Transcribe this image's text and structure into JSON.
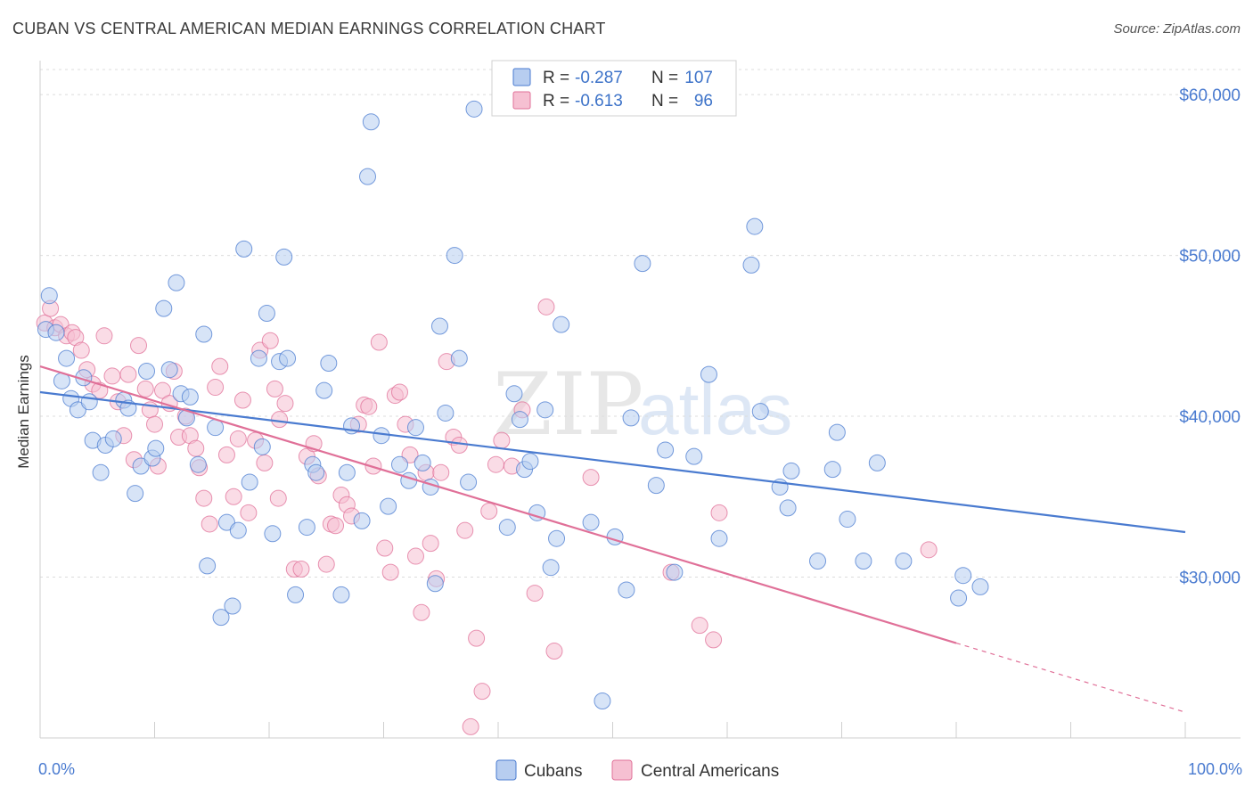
{
  "title": "CUBAN VS CENTRAL AMERICAN MEDIAN EARNINGS CORRELATION CHART",
  "source": "Source: ZipAtlas.com",
  "watermark": {
    "zip": "ZIP",
    "atlas": "atlas"
  },
  "colors": {
    "cubans": "#4a7bd0",
    "central": "#e07098",
    "cubans_fill": "#b7cdf0",
    "central_fill": "#f6c0d2",
    "axis_text": "#4a7bd0"
  },
  "legend": {
    "r_label": "R =",
    "n_label": "N =",
    "rows": [
      {
        "series": "Cubans",
        "r": "-0.287",
        "n": "107"
      },
      {
        "series": "Central Americans",
        "r": "-0.613",
        "n": "96"
      }
    ]
  },
  "bottom_legend": [
    "Cubans",
    "Central Americans"
  ],
  "chart_data": {
    "type": "scatter",
    "title": "CUBAN VS CENTRAL AMERICAN MEDIAN EARNINGS CORRELATION CHART",
    "xlabel": "",
    "ylabel": "Median Earnings",
    "xlim": [
      0,
      100
    ],
    "ylim": [
      20000,
      62000
    ],
    "x_tick_labels": [
      "0.0%",
      "100.0%"
    ],
    "y_ticks": [
      30000,
      40000,
      50000,
      60000
    ],
    "y_tick_labels": [
      "$30,000",
      "$40,000",
      "$50,000",
      "$60,000"
    ],
    "grid": true,
    "legend_position": "top-center",
    "series": [
      {
        "name": "Cubans",
        "trend": {
          "x": [
            0,
            100
          ],
          "y": [
            41500,
            32800
          ]
        },
        "points": [
          [
            0.5,
            45400
          ],
          [
            0.8,
            47500
          ],
          [
            1.4,
            45200
          ],
          [
            1.9,
            42200
          ],
          [
            2.3,
            43600
          ],
          [
            2.7,
            41100
          ],
          [
            3.3,
            40400
          ],
          [
            3.8,
            42400
          ],
          [
            4.3,
            40900
          ],
          [
            4.6,
            38500
          ],
          [
            5.3,
            36500
          ],
          [
            5.7,
            38200
          ],
          [
            6.4,
            38600
          ],
          [
            7.3,
            41000
          ],
          [
            7.7,
            40500
          ],
          [
            8.3,
            35200
          ],
          [
            8.8,
            36900
          ],
          [
            9.3,
            42800
          ],
          [
            9.8,
            37400
          ],
          [
            10.1,
            38000
          ],
          [
            10.8,
            46700
          ],
          [
            11.3,
            42900
          ],
          [
            11.9,
            48300
          ],
          [
            12.3,
            41400
          ],
          [
            12.8,
            39900
          ],
          [
            13.1,
            41200
          ],
          [
            13.8,
            37000
          ],
          [
            14.3,
            45100
          ],
          [
            14.6,
            30700
          ],
          [
            15.3,
            39300
          ],
          [
            15.8,
            27500
          ],
          [
            16.3,
            33400
          ],
          [
            16.8,
            28200
          ],
          [
            17.3,
            32900
          ],
          [
            17.8,
            50400
          ],
          [
            18.3,
            35900
          ],
          [
            19.1,
            43600
          ],
          [
            19.4,
            38100
          ],
          [
            19.8,
            46400
          ],
          [
            20.3,
            32700
          ],
          [
            20.9,
            43400
          ],
          [
            21.3,
            49900
          ],
          [
            21.6,
            43600
          ],
          [
            22.3,
            28900
          ],
          [
            23.3,
            33100
          ],
          [
            23.8,
            37000
          ],
          [
            24.1,
            36500
          ],
          [
            24.8,
            41600
          ],
          [
            25.2,
            43300
          ],
          [
            26.3,
            28900
          ],
          [
            26.8,
            36500
          ],
          [
            27.2,
            39400
          ],
          [
            28.1,
            33500
          ],
          [
            28.6,
            54900
          ],
          [
            28.9,
            58300
          ],
          [
            29.8,
            38800
          ],
          [
            30.4,
            34400
          ],
          [
            31.4,
            37000
          ],
          [
            32.2,
            36000
          ],
          [
            32.8,
            39300
          ],
          [
            33.4,
            37100
          ],
          [
            34.1,
            35600
          ],
          [
            34.5,
            29600
          ],
          [
            34.9,
            45600
          ],
          [
            35.4,
            40200
          ],
          [
            36.2,
            50000
          ],
          [
            36.6,
            43600
          ],
          [
            37.4,
            35900
          ],
          [
            37.9,
            59100
          ],
          [
            40.8,
            33100
          ],
          [
            41.4,
            41400
          ],
          [
            41.9,
            39800
          ],
          [
            42.3,
            36700
          ],
          [
            42.8,
            37200
          ],
          [
            43.4,
            34000
          ],
          [
            44.1,
            40400
          ],
          [
            44.6,
            30600
          ],
          [
            45.1,
            32400
          ],
          [
            45.5,
            45700
          ],
          [
            48.1,
            33400
          ],
          [
            49.1,
            22300
          ],
          [
            50.2,
            32500
          ],
          [
            51.2,
            29200
          ],
          [
            51.6,
            39900
          ],
          [
            52.6,
            49500
          ],
          [
            53.8,
            35700
          ],
          [
            54.6,
            37900
          ],
          [
            55.4,
            30300
          ],
          [
            57.1,
            37500
          ],
          [
            58.4,
            42600
          ],
          [
            59.3,
            32400
          ],
          [
            62.1,
            49400
          ],
          [
            62.4,
            51800
          ],
          [
            62.9,
            40300
          ],
          [
            64.6,
            35600
          ],
          [
            65.3,
            34300
          ],
          [
            65.6,
            36600
          ],
          [
            67.9,
            31000
          ],
          [
            69.2,
            36700
          ],
          [
            69.6,
            39000
          ],
          [
            70.5,
            33600
          ],
          [
            71.9,
            31000
          ],
          [
            73.1,
            37100
          ],
          [
            75.4,
            31000
          ],
          [
            80.2,
            28700
          ],
          [
            80.6,
            30100
          ],
          [
            82.1,
            29400
          ]
        ]
      },
      {
        "name": "Central Americans",
        "trend": {
          "x": [
            0,
            80
          ],
          "y": [
            43100,
            25900
          ]
        },
        "trend_extension": {
          "x": [
            80,
            100
          ],
          "y": [
            25900,
            21600
          ]
        },
        "points": [
          [
            0.4,
            45800
          ],
          [
            0.9,
            46700
          ],
          [
            1.3,
            45500
          ],
          [
            1.8,
            45700
          ],
          [
            2.3,
            45000
          ],
          [
            2.8,
            45200
          ],
          [
            3.1,
            44900
          ],
          [
            3.6,
            44100
          ],
          [
            4.1,
            42900
          ],
          [
            4.6,
            42000
          ],
          [
            5.2,
            41600
          ],
          [
            5.6,
            45000
          ],
          [
            6.3,
            42500
          ],
          [
            6.8,
            40900
          ],
          [
            7.3,
            38800
          ],
          [
            7.7,
            42600
          ],
          [
            8.2,
            37300
          ],
          [
            8.6,
            44400
          ],
          [
            9.2,
            41700
          ],
          [
            9.6,
            40400
          ],
          [
            10.0,
            39500
          ],
          [
            10.3,
            36900
          ],
          [
            10.7,
            41600
          ],
          [
            11.3,
            40800
          ],
          [
            11.7,
            42800
          ],
          [
            12.1,
            38700
          ],
          [
            12.7,
            40000
          ],
          [
            13.1,
            38800
          ],
          [
            13.6,
            38000
          ],
          [
            13.9,
            36800
          ],
          [
            14.3,
            34900
          ],
          [
            14.8,
            33300
          ],
          [
            15.3,
            41800
          ],
          [
            15.7,
            43100
          ],
          [
            16.3,
            37600
          ],
          [
            16.9,
            35000
          ],
          [
            17.3,
            38600
          ],
          [
            17.7,
            41000
          ],
          [
            18.2,
            34000
          ],
          [
            18.8,
            38500
          ],
          [
            19.2,
            44100
          ],
          [
            19.6,
            37100
          ],
          [
            20.1,
            44700
          ],
          [
            20.5,
            41700
          ],
          [
            20.9,
            39800
          ],
          [
            21.4,
            40800
          ],
          [
            22.2,
            30500
          ],
          [
            22.8,
            30500
          ],
          [
            23.3,
            37500
          ],
          [
            23.9,
            38300
          ],
          [
            24.3,
            36300
          ],
          [
            25.0,
            30800
          ],
          [
            25.4,
            33300
          ],
          [
            25.8,
            33200
          ],
          [
            26.3,
            35100
          ],
          [
            26.8,
            34500
          ],
          [
            27.2,
            33800
          ],
          [
            27.8,
            39500
          ],
          [
            28.3,
            40700
          ],
          [
            28.7,
            40600
          ],
          [
            29.1,
            36900
          ],
          [
            29.6,
            44600
          ],
          [
            30.1,
            31800
          ],
          [
            30.6,
            30300
          ],
          [
            31.0,
            41300
          ],
          [
            31.4,
            41500
          ],
          [
            31.9,
            39500
          ],
          [
            32.3,
            37600
          ],
          [
            32.8,
            31300
          ],
          [
            33.3,
            27800
          ],
          [
            33.7,
            36500
          ],
          [
            34.1,
            32100
          ],
          [
            34.6,
            29900
          ],
          [
            35.0,
            36500
          ],
          [
            35.5,
            43400
          ],
          [
            36.1,
            38700
          ],
          [
            36.6,
            38200
          ],
          [
            37.1,
            32900
          ],
          [
            37.6,
            20700
          ],
          [
            38.1,
            26200
          ],
          [
            38.6,
            22900
          ],
          [
            39.2,
            34100
          ],
          [
            39.8,
            37000
          ],
          [
            40.3,
            38500
          ],
          [
            41.2,
            36900
          ],
          [
            42.1,
            40400
          ],
          [
            43.2,
            29000
          ],
          [
            44.2,
            46800
          ],
          [
            44.9,
            25400
          ],
          [
            48.1,
            36200
          ],
          [
            55.1,
            30300
          ],
          [
            57.6,
            27000
          ],
          [
            58.8,
            26100
          ],
          [
            59.3,
            34000
          ],
          [
            77.6,
            31700
          ],
          [
            20.8,
            34900
          ]
        ]
      }
    ]
  }
}
